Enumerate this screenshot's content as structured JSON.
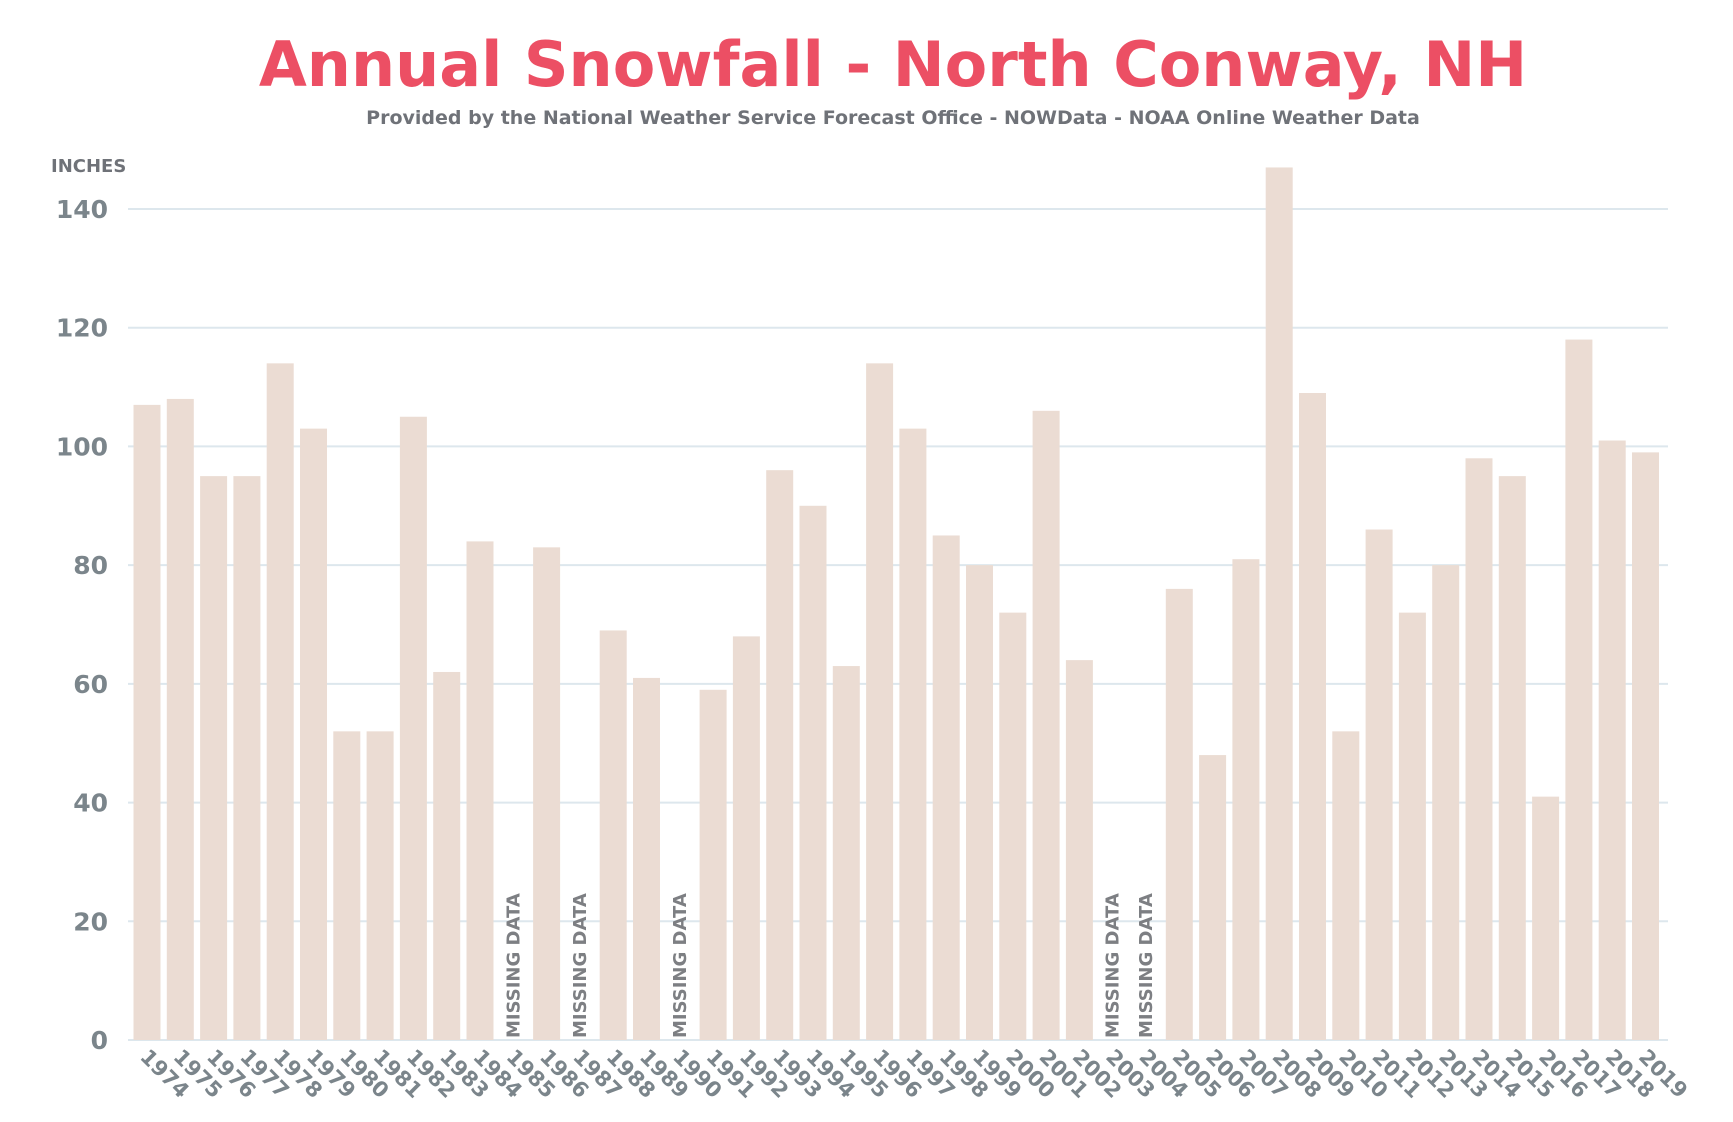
{
  "colors": {
    "title": "#ec4f64",
    "subtitle": "#6f7278",
    "bar": "#ebdcd3",
    "grid": "#dde7ed",
    "axis_text": "#7b858b",
    "missing_text": "#7d7f83"
  },
  "chart_data": {
    "type": "bar",
    "title": "Annual Snowfall - North Conway, NH",
    "subtitle": "Provided by the National Weather Service Forecast Office - NOWData - NOAA Online Weather Data",
    "xlabel": "",
    "ylabel": "INCHES",
    "ylim": [
      0,
      140
    ],
    "yticks": [
      0,
      20,
      40,
      60,
      80,
      100,
      120,
      140
    ],
    "grid": true,
    "categories": [
      "1974",
      "1975",
      "1976",
      "1977",
      "1978",
      "1979",
      "1980",
      "1981",
      "1982",
      "1983",
      "1984",
      "1985",
      "1986",
      "1987",
      "1988",
      "1989",
      "1990",
      "1991",
      "1992",
      "1993",
      "1994",
      "1995",
      "1996",
      "1997",
      "1998",
      "1999",
      "2000",
      "2001",
      "2002",
      "2003",
      "2004",
      "2005",
      "2006",
      "2007",
      "2008",
      "2009",
      "2010",
      "2011",
      "2012",
      "2013",
      "2014",
      "2015",
      "2016",
      "2017",
      "2018",
      "2019"
    ],
    "values": [
      107,
      108,
      95,
      95,
      114,
      103,
      52,
      52,
      105,
      62,
      84,
      null,
      83,
      null,
      69,
      61,
      null,
      59,
      68,
      96,
      90,
      63,
      114,
      103,
      85,
      80,
      72,
      106,
      64,
      null,
      null,
      76,
      48,
      81,
      147,
      109,
      52,
      86,
      72,
      80,
      98,
      95,
      41,
      118,
      101,
      99
    ],
    "missing_label": "MISSING DATA"
  }
}
